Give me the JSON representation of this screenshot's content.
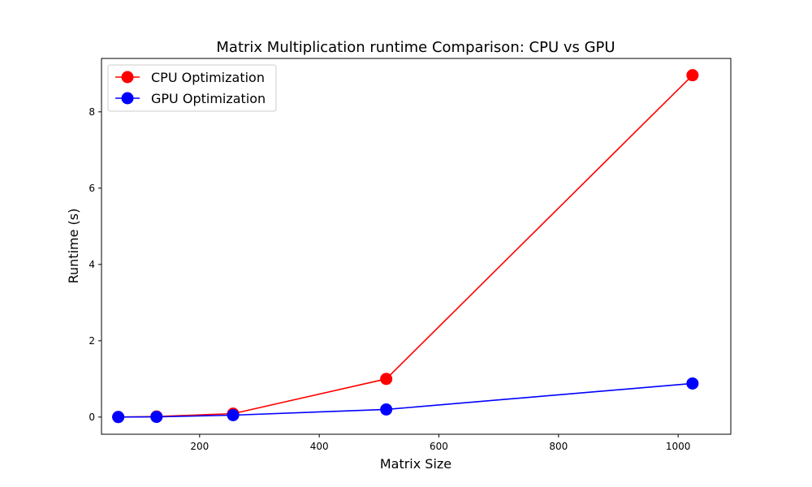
{
  "chart_data": {
    "type": "line",
    "title": "Matrix Multiplication runtime Comparison: CPU vs GPU",
    "xlabel": "Matrix Size",
    "ylabel": "Runtime (s)",
    "xlim": [
      36,
      1088
    ],
    "ylim": [
      -0.45,
      9.4
    ],
    "x_ticks": [
      200,
      400,
      600,
      800,
      1000
    ],
    "y_ticks": [
      0,
      2,
      4,
      6,
      8
    ],
    "grid": false,
    "legend_position": "top-left",
    "series": [
      {
        "name": "CPU Optimization",
        "color": "#ff0000",
        "marker": "circle",
        "x": [
          64,
          128,
          256,
          512,
          1024
        ],
        "y": [
          0.002,
          0.015,
          0.09,
          1.0,
          8.96
        ]
      },
      {
        "name": "GPU Optimization",
        "color": "#0000ff",
        "marker": "circle",
        "x": [
          64,
          128,
          256,
          512,
          1024
        ],
        "y": [
          0.001,
          0.005,
          0.05,
          0.2,
          0.88
        ]
      }
    ]
  }
}
